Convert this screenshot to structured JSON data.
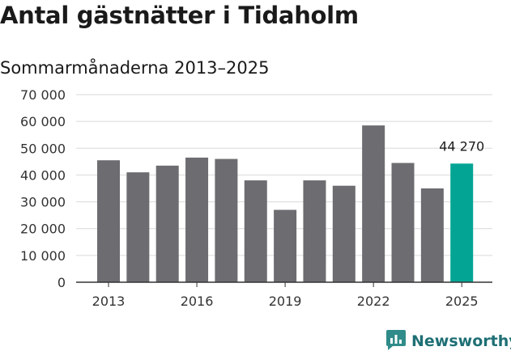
{
  "title": "Antal gästnätter i Tidaholm",
  "subtitle": "Sommarmånaderna 2013–2025",
  "brand": {
    "name": "Newsworthy",
    "icon": "newsworthy-logo-icon"
  },
  "colors": {
    "bar": "#6d6c70",
    "highlight": "#04a494",
    "grid": "#d9d9d9",
    "axis": "#333333",
    "brand": "#1e6f74"
  },
  "chart_data": {
    "type": "bar",
    "title": "Antal gästnätter i Tidaholm",
    "subtitle": "Sommarmånaderna 2013–2025",
    "xlabel": "",
    "ylabel": "",
    "categories": [
      "2013",
      "2014",
      "2015",
      "2016",
      "2017",
      "2018",
      "2019",
      "2020",
      "2021",
      "2022",
      "2023",
      "2024",
      "2025"
    ],
    "values": [
      45500,
      41000,
      43500,
      46500,
      46000,
      38000,
      27000,
      38000,
      36000,
      58500,
      44500,
      35000,
      44270
    ],
    "highlight_index": 12,
    "data_labels": [
      {
        "index": 12,
        "text": "44 270"
      }
    ],
    "x_tick_labels": [
      {
        "index": 0,
        "text": "2013"
      },
      {
        "index": 3,
        "text": "2016"
      },
      {
        "index": 6,
        "text": "2019"
      },
      {
        "index": 9,
        "text": "2022"
      },
      {
        "index": 12,
        "text": "2025"
      }
    ],
    "y_ticks": [
      {
        "value": 0,
        "text": "0"
      },
      {
        "value": 10000,
        "text": "10 000"
      },
      {
        "value": 20000,
        "text": "20 000"
      },
      {
        "value": 30000,
        "text": "30 000"
      },
      {
        "value": 40000,
        "text": "40 000"
      },
      {
        "value": 50000,
        "text": "50 000"
      },
      {
        "value": 60000,
        "text": "60 000"
      },
      {
        "value": 70000,
        "text": "70 000"
      }
    ],
    "ylim": [
      0,
      70000
    ],
    "grid": true,
    "legend": "none"
  }
}
